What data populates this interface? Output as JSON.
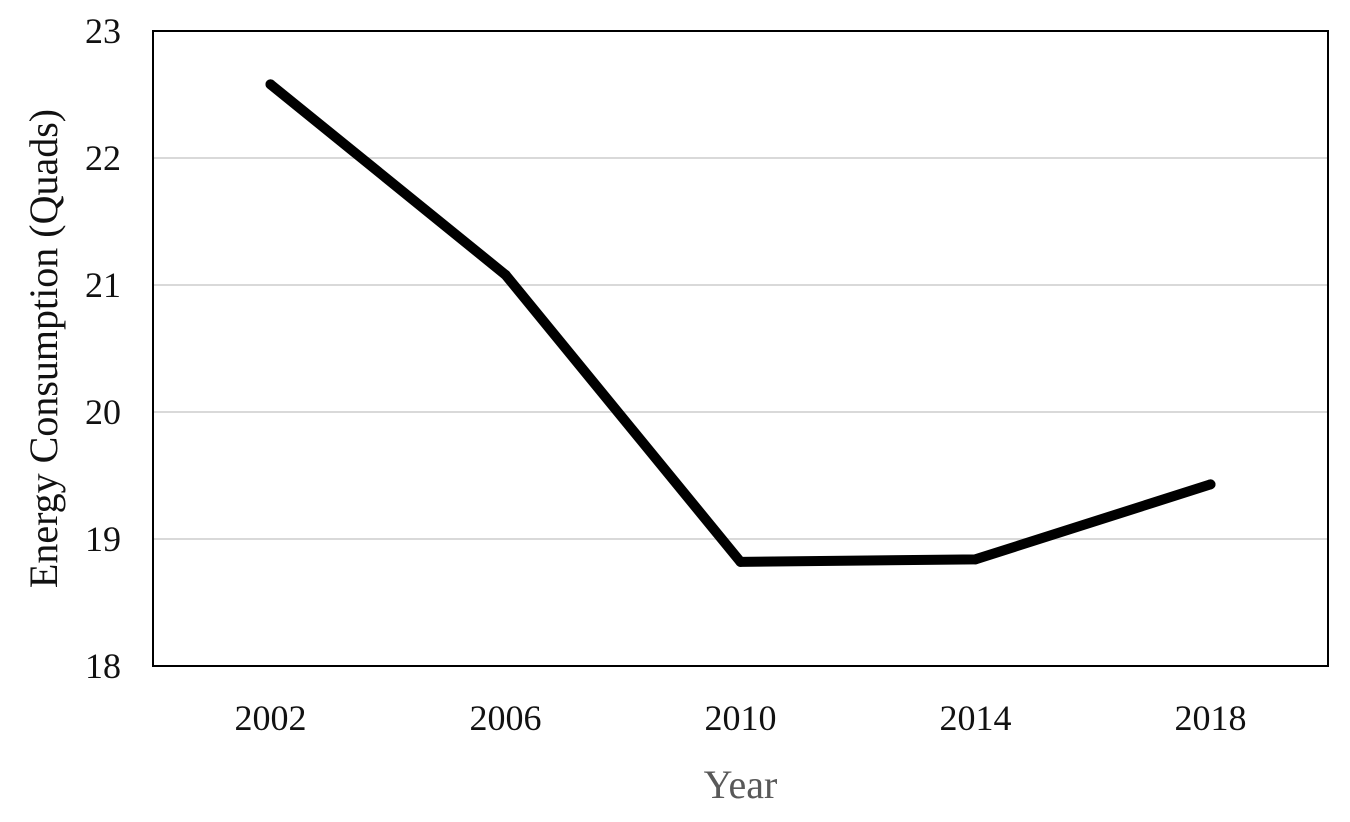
{
  "chart_data": {
    "type": "line",
    "title": "",
    "xlabel": "Year",
    "ylabel": "Energy Consumption (Quads)",
    "categories": [
      "2002",
      "2006",
      "2010",
      "2014",
      "2018"
    ],
    "series": [
      {
        "values": [
          22.58,
          21.08,
          18.82,
          18.84,
          19.43
        ],
        "color": "#000000"
      }
    ],
    "ylim": [
      18,
      23
    ],
    "yticks": [
      "18",
      "19",
      "20",
      "21",
      "22",
      "23"
    ],
    "grid": "horizontal",
    "grid_color": "#d9d9d9",
    "legend": "none",
    "ylabel_color": "#111111",
    "xlabel_color": "#595959"
  }
}
